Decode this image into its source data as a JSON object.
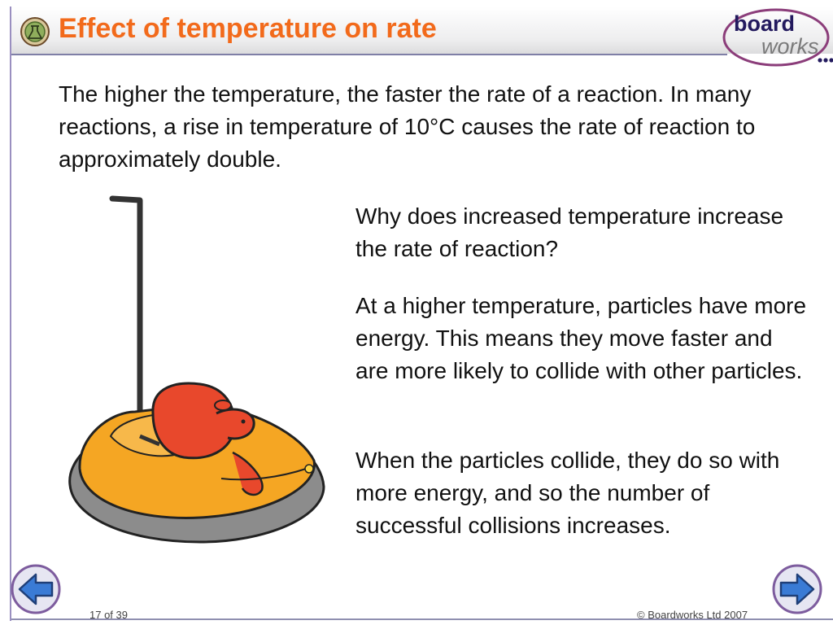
{
  "slide": {
    "title": "Effect of temperature on rate",
    "intro": "The higher the temperature, the faster the rate of a reaction. In many reactions, a rise in temperature of 10°C causes the rate of reaction to approximately double.",
    "question": "Why does increased temperature increase the rate of reaction?",
    "answer_1": "At a higher temperature, particles have more energy. This means they move faster and are more likely to collide with other particles.",
    "answer_2": "When the particles collide, they do so with more energy, and so the number of successful collisions increases."
  },
  "logo": {
    "word_1": "board",
    "word_2": "works"
  },
  "footer": {
    "page": "17 of 39",
    "copyright": "© Boardworks Ltd 2007"
  },
  "icons": {
    "title_icon": "reaction-flask-icon",
    "prev": "arrow-left-icon",
    "next": "arrow-right-icon"
  },
  "colors": {
    "title": "#f26a1b",
    "logo_ring": "#8b3d7a",
    "nav": "#3a7bd5"
  }
}
